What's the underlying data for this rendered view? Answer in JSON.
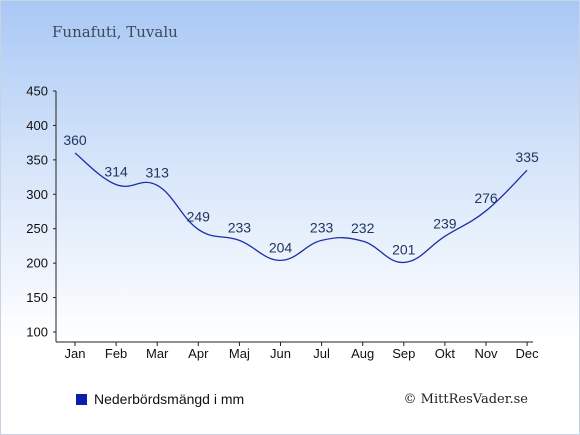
{
  "title": "Funafuti, Tuvalu",
  "chart_data": {
    "type": "line",
    "categories": [
      "Jan",
      "Feb",
      "Mar",
      "Apr",
      "Maj",
      "Jun",
      "Jul",
      "Aug",
      "Sep",
      "Okt",
      "Nov",
      "Dec"
    ],
    "series": [
      {
        "name": "Nederbördsmängd i mm",
        "values": [
          360,
          314,
          313,
          249,
          233,
          204,
          233,
          232,
          201,
          239,
          276,
          335
        ],
        "color": "#1b2fa8"
      }
    ],
    "ylim": [
      100,
      450
    ],
    "yticks": [
      100,
      150,
      200,
      250,
      300,
      350,
      400,
      450
    ],
    "legend_position": "bottom-left",
    "grid": false
  },
  "legend": {
    "label": "Nederbördsmängd i mm",
    "color": "#0b1fa8"
  },
  "credit": "© MittResVader.se"
}
